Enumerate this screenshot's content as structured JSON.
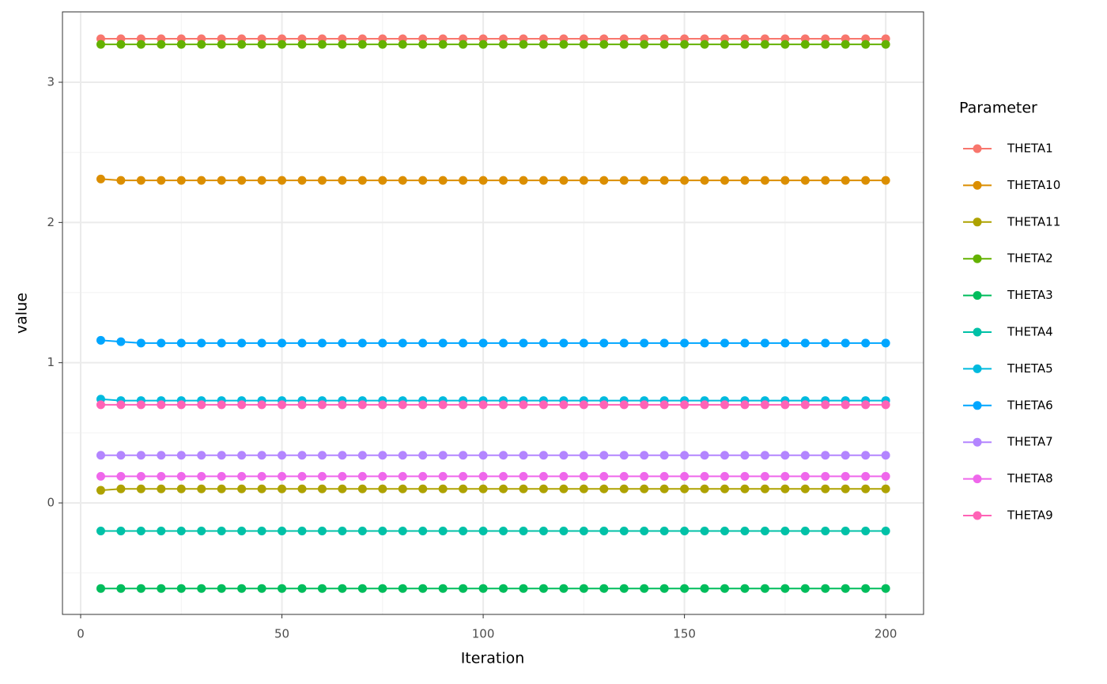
{
  "chart_data": {
    "type": "line",
    "xlabel": "Iteration",
    "ylabel": "value",
    "legend_title": "Parameter",
    "legend_position": "right",
    "grid": true,
    "xlim": [
      -4.52,
      209.4
    ],
    "ylim": [
      -0.795,
      3.502
    ],
    "xticks": [
      0,
      50,
      100,
      150,
      200
    ],
    "yticks": [
      0,
      1,
      2,
      3
    ],
    "x": [
      5,
      10,
      15,
      20,
      25,
      30,
      35,
      40,
      45,
      50,
      55,
      60,
      65,
      70,
      75,
      80,
      85,
      90,
      95,
      100,
      105,
      110,
      115,
      120,
      125,
      130,
      135,
      140,
      145,
      150,
      155,
      160,
      165,
      170,
      175,
      180,
      185,
      190,
      195,
      200
    ],
    "series": [
      {
        "name": "THETA1",
        "color": "#F8766D",
        "values": [
          3.31,
          3.31,
          3.31,
          3.31,
          3.31,
          3.31,
          3.31,
          3.31,
          3.31,
          3.31,
          3.31,
          3.31,
          3.31,
          3.31,
          3.31,
          3.31,
          3.31,
          3.31,
          3.31,
          3.31,
          3.31,
          3.31,
          3.31,
          3.31,
          3.31,
          3.31,
          3.31,
          3.31,
          3.31,
          3.31,
          3.31,
          3.31,
          3.31,
          3.31,
          3.31,
          3.31,
          3.31,
          3.31,
          3.31,
          3.31
        ]
      },
      {
        "name": "THETA10",
        "color": "#DB8E00",
        "values": [
          2.31,
          2.3,
          2.3,
          2.3,
          2.3,
          2.3,
          2.3,
          2.3,
          2.3,
          2.3,
          2.3,
          2.3,
          2.3,
          2.3,
          2.3,
          2.3,
          2.3,
          2.3,
          2.3,
          2.3,
          2.3,
          2.3,
          2.3,
          2.3,
          2.3,
          2.3,
          2.3,
          2.3,
          2.3,
          2.3,
          2.3,
          2.3,
          2.3,
          2.3,
          2.3,
          2.3,
          2.3,
          2.3,
          2.3,
          2.3
        ]
      },
      {
        "name": "THETA11",
        "color": "#AEA200",
        "values": [
          0.09,
          0.1,
          0.1,
          0.1,
          0.1,
          0.1,
          0.1,
          0.1,
          0.1,
          0.1,
          0.1,
          0.1,
          0.1,
          0.1,
          0.1,
          0.1,
          0.1,
          0.1,
          0.1,
          0.1,
          0.1,
          0.1,
          0.1,
          0.1,
          0.1,
          0.1,
          0.1,
          0.1,
          0.1,
          0.1,
          0.1,
          0.1,
          0.1,
          0.1,
          0.1,
          0.1,
          0.1,
          0.1,
          0.1,
          0.1
        ]
      },
      {
        "name": "THETA2",
        "color": "#64B200",
        "values": [
          3.27,
          3.27,
          3.27,
          3.27,
          3.27,
          3.27,
          3.27,
          3.27,
          3.27,
          3.27,
          3.27,
          3.27,
          3.27,
          3.27,
          3.27,
          3.27,
          3.27,
          3.27,
          3.27,
          3.27,
          3.27,
          3.27,
          3.27,
          3.27,
          3.27,
          3.27,
          3.27,
          3.27,
          3.27,
          3.27,
          3.27,
          3.27,
          3.27,
          3.27,
          3.27,
          3.27,
          3.27,
          3.27,
          3.27,
          3.27
        ]
      },
      {
        "name": "THETA3",
        "color": "#00BD5C",
        "values": [
          -0.61,
          -0.61,
          -0.61,
          -0.61,
          -0.61,
          -0.61,
          -0.61,
          -0.61,
          -0.61,
          -0.61,
          -0.61,
          -0.61,
          -0.61,
          -0.61,
          -0.61,
          -0.61,
          -0.61,
          -0.61,
          -0.61,
          -0.61,
          -0.61,
          -0.61,
          -0.61,
          -0.61,
          -0.61,
          -0.61,
          -0.61,
          -0.61,
          -0.61,
          -0.61,
          -0.61,
          -0.61,
          -0.61,
          -0.61,
          -0.61,
          -0.61,
          -0.61,
          -0.61,
          -0.61,
          -0.61
        ]
      },
      {
        "name": "THETA4",
        "color": "#00C1A7",
        "values": [
          -0.2,
          -0.2,
          -0.2,
          -0.2,
          -0.2,
          -0.2,
          -0.2,
          -0.2,
          -0.2,
          -0.2,
          -0.2,
          -0.2,
          -0.2,
          -0.2,
          -0.2,
          -0.2,
          -0.2,
          -0.2,
          -0.2,
          -0.2,
          -0.2,
          -0.2,
          -0.2,
          -0.2,
          -0.2,
          -0.2,
          -0.2,
          -0.2,
          -0.2,
          -0.2,
          -0.2,
          -0.2,
          -0.2,
          -0.2,
          -0.2,
          -0.2,
          -0.2,
          -0.2,
          -0.2,
          -0.2
        ]
      },
      {
        "name": "THETA5",
        "color": "#00BADE",
        "values": [
          0.74,
          0.73,
          0.73,
          0.73,
          0.73,
          0.73,
          0.73,
          0.73,
          0.73,
          0.73,
          0.73,
          0.73,
          0.73,
          0.73,
          0.73,
          0.73,
          0.73,
          0.73,
          0.73,
          0.73,
          0.73,
          0.73,
          0.73,
          0.73,
          0.73,
          0.73,
          0.73,
          0.73,
          0.73,
          0.73,
          0.73,
          0.73,
          0.73,
          0.73,
          0.73,
          0.73,
          0.73,
          0.73,
          0.73,
          0.73
        ]
      },
      {
        "name": "THETA6",
        "color": "#00A6FF",
        "values": [
          1.16,
          1.15,
          1.14,
          1.14,
          1.14,
          1.14,
          1.14,
          1.14,
          1.14,
          1.14,
          1.14,
          1.14,
          1.14,
          1.14,
          1.14,
          1.14,
          1.14,
          1.14,
          1.14,
          1.14,
          1.14,
          1.14,
          1.14,
          1.14,
          1.14,
          1.14,
          1.14,
          1.14,
          1.14,
          1.14,
          1.14,
          1.14,
          1.14,
          1.14,
          1.14,
          1.14,
          1.14,
          1.14,
          1.14,
          1.14
        ]
      },
      {
        "name": "THETA7",
        "color": "#B385FF",
        "values": [
          0.34,
          0.34,
          0.34,
          0.34,
          0.34,
          0.34,
          0.34,
          0.34,
          0.34,
          0.34,
          0.34,
          0.34,
          0.34,
          0.34,
          0.34,
          0.34,
          0.34,
          0.34,
          0.34,
          0.34,
          0.34,
          0.34,
          0.34,
          0.34,
          0.34,
          0.34,
          0.34,
          0.34,
          0.34,
          0.34,
          0.34,
          0.34,
          0.34,
          0.34,
          0.34,
          0.34,
          0.34,
          0.34,
          0.34,
          0.34
        ]
      },
      {
        "name": "THETA8",
        "color": "#EF67EB",
        "values": [
          0.19,
          0.19,
          0.19,
          0.19,
          0.19,
          0.19,
          0.19,
          0.19,
          0.19,
          0.19,
          0.19,
          0.19,
          0.19,
          0.19,
          0.19,
          0.19,
          0.19,
          0.19,
          0.19,
          0.19,
          0.19,
          0.19,
          0.19,
          0.19,
          0.19,
          0.19,
          0.19,
          0.19,
          0.19,
          0.19,
          0.19,
          0.19,
          0.19,
          0.19,
          0.19,
          0.19,
          0.19,
          0.19,
          0.19,
          0.19
        ]
      },
      {
        "name": "THETA9",
        "color": "#FF63B6",
        "values": [
          0.7,
          0.7,
          0.7,
          0.7,
          0.7,
          0.7,
          0.7,
          0.7,
          0.7,
          0.7,
          0.7,
          0.7,
          0.7,
          0.7,
          0.7,
          0.7,
          0.7,
          0.7,
          0.7,
          0.7,
          0.7,
          0.7,
          0.7,
          0.7,
          0.7,
          0.7,
          0.7,
          0.7,
          0.7,
          0.7,
          0.7,
          0.7,
          0.7,
          0.7,
          0.7,
          0.7,
          0.7,
          0.7,
          0.7,
          0.7
        ]
      }
    ]
  }
}
